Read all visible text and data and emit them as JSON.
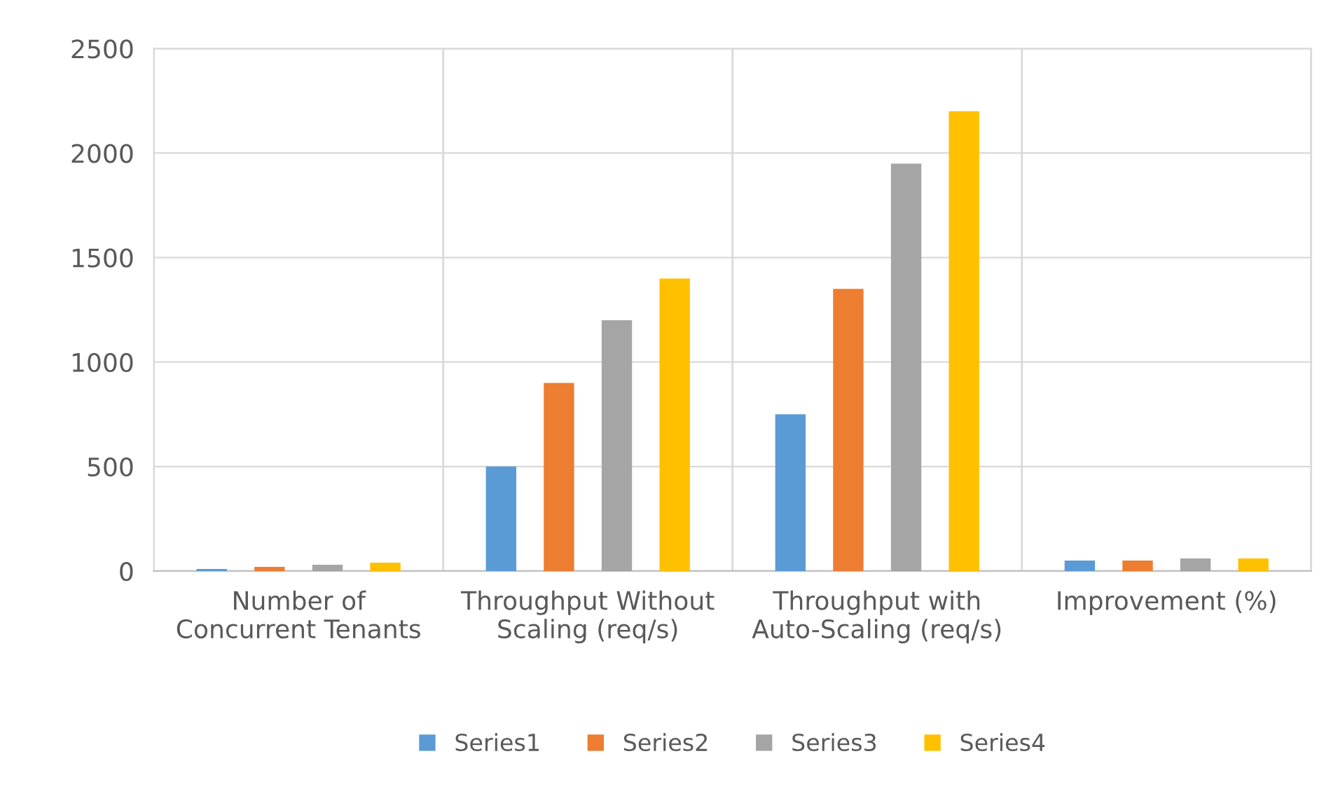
{
  "chart_data": {
    "type": "bar",
    "categories": [
      "Number of\nConcurrent Tenants",
      "Throughput Without\nScaling (req/s)",
      "Throughput with\nAuto-Scaling (req/s)",
      "Improvement (%)"
    ],
    "series": [
      {
        "name": "Series1",
        "color": "#5b9bd5",
        "values": [
          10,
          500,
          750,
          50
        ]
      },
      {
        "name": "Series2",
        "color": "#ed7d31",
        "values": [
          20,
          900,
          1350,
          50
        ]
      },
      {
        "name": "Series3",
        "color": "#a5a5a5",
        "values": [
          30,
          1200,
          1950,
          60
        ]
      },
      {
        "name": "Series4",
        "color": "#ffc000",
        "values": [
          40,
          1400,
          2200,
          60
        ]
      }
    ],
    "ylim": [
      0,
      2500
    ],
    "yticks": [
      0,
      500,
      1000,
      1500,
      2000,
      2500
    ],
    "grid": true,
    "legend": "bottom"
  }
}
